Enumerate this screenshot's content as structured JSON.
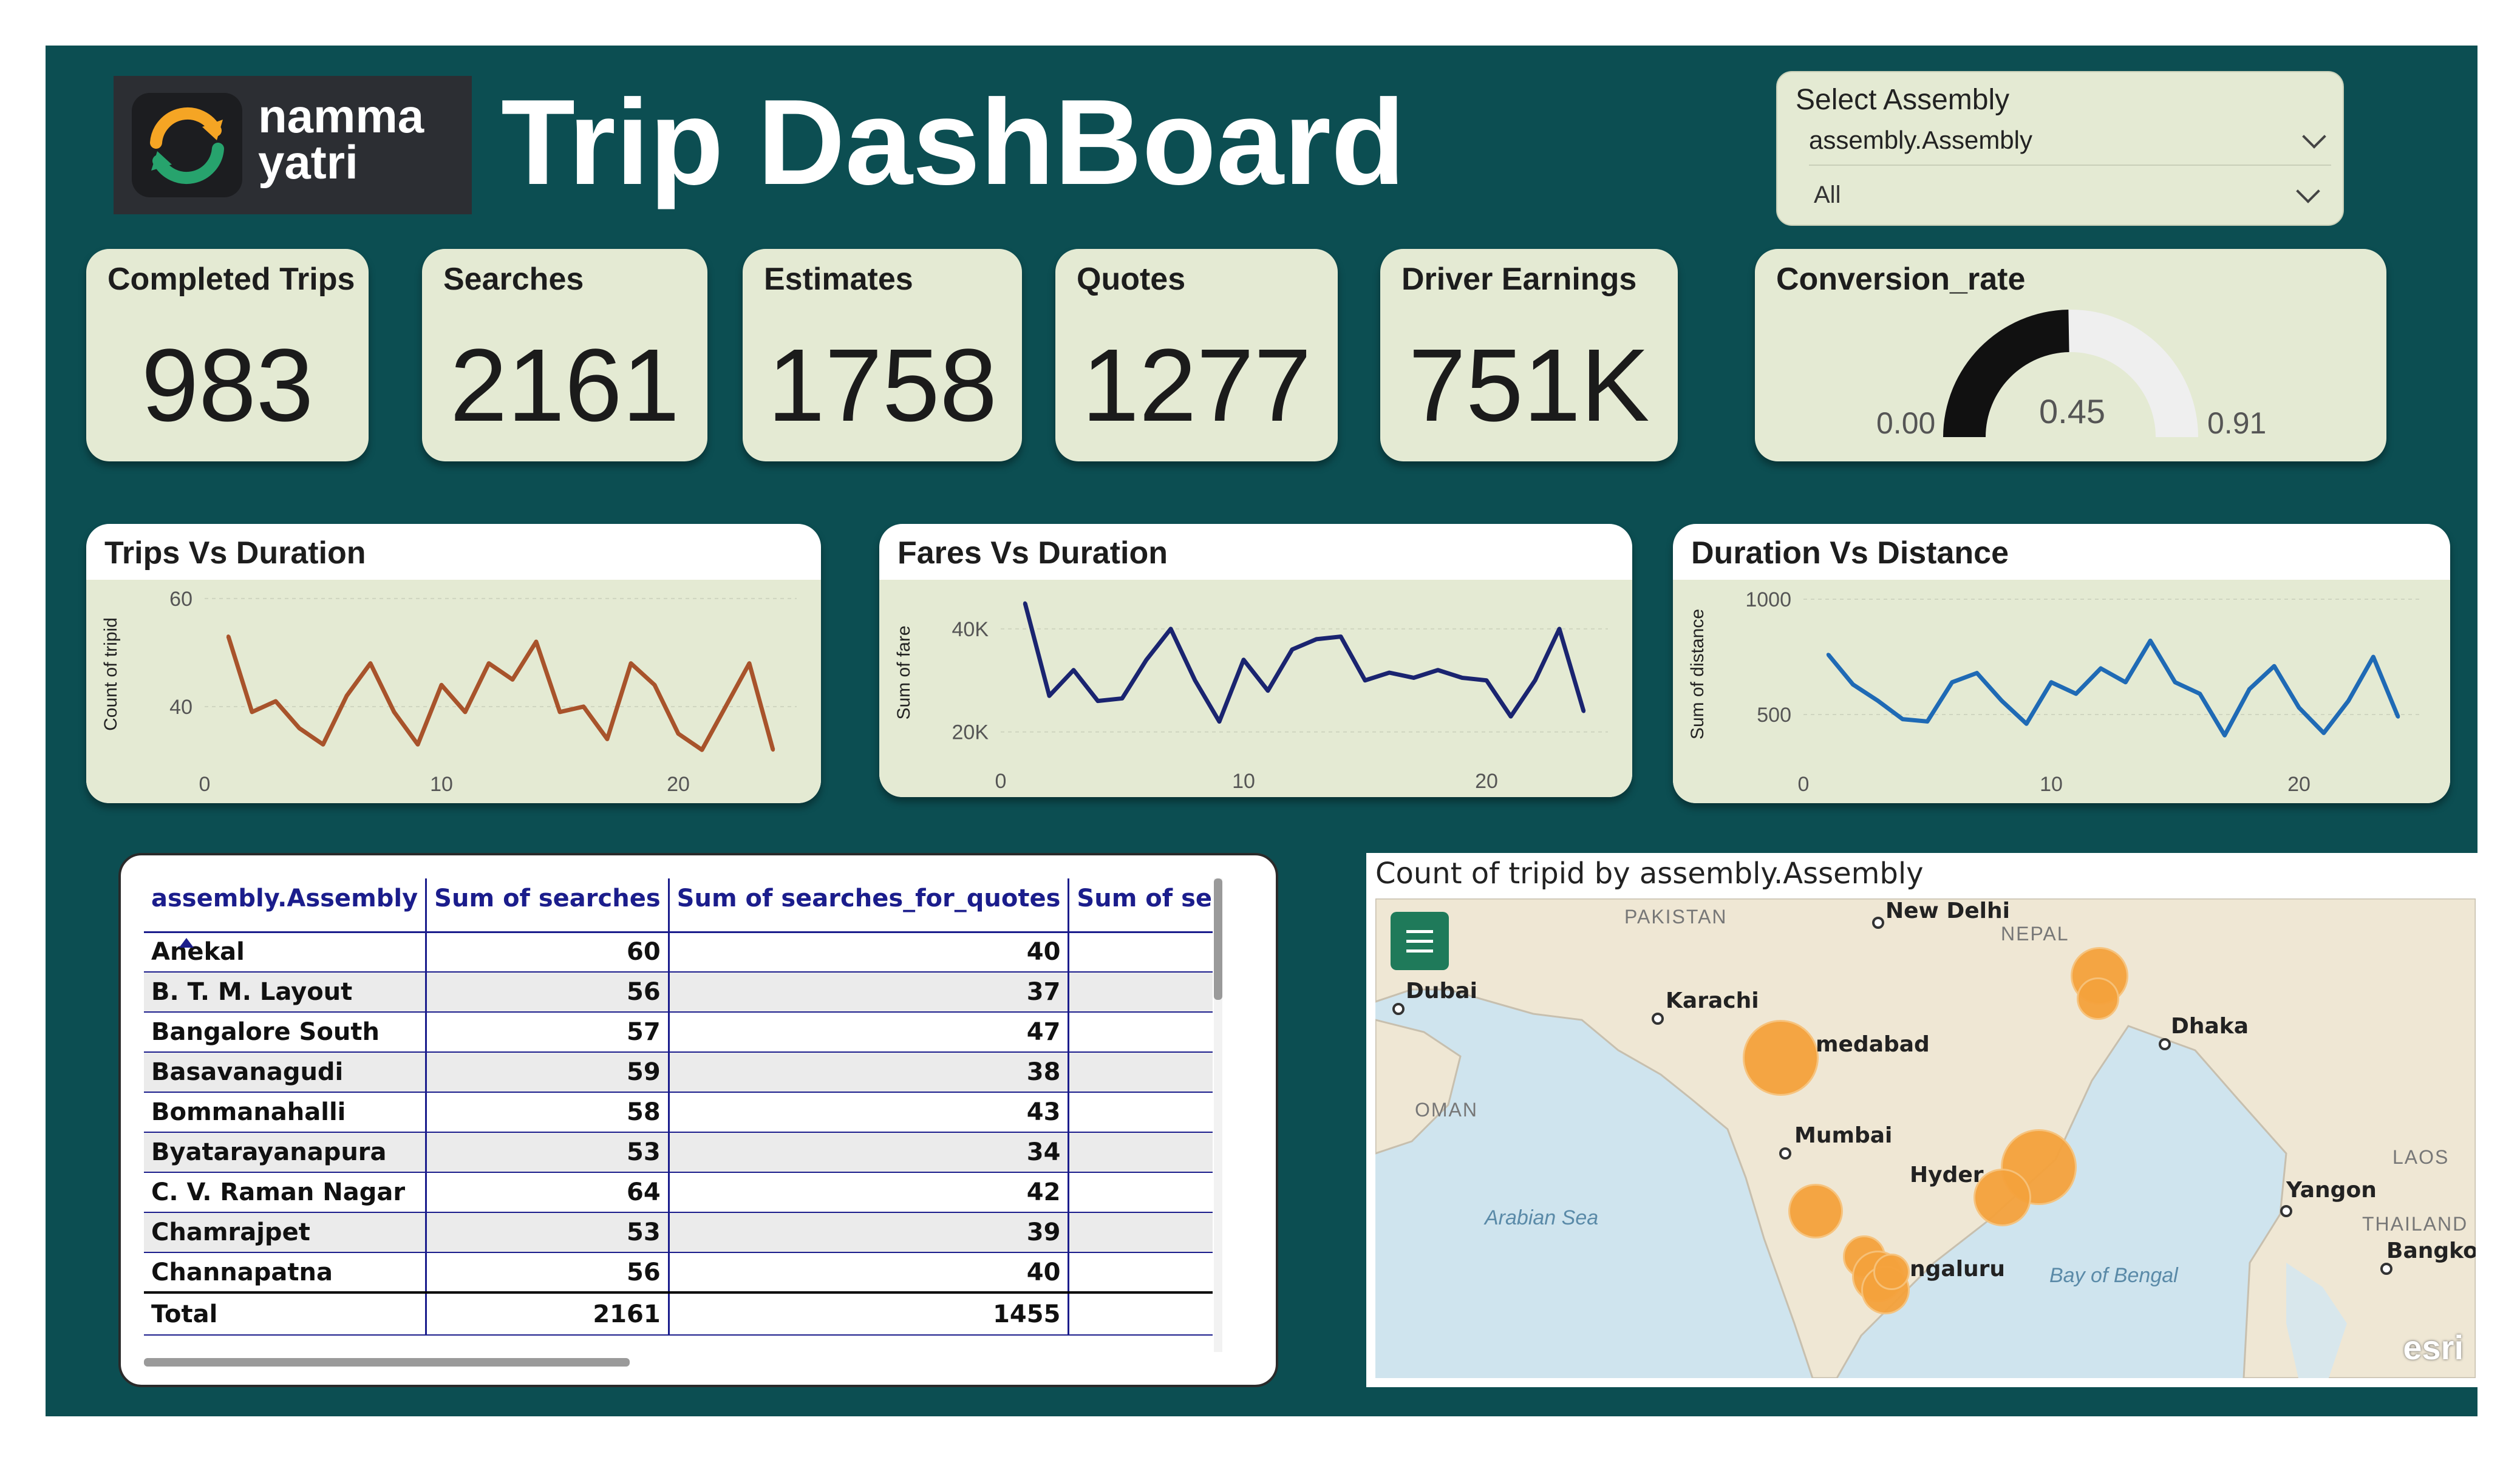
{
  "brand": {
    "line1": "namma",
    "line2": "yatri"
  },
  "header": {
    "title": "Trip DashBoard"
  },
  "slicer": {
    "label": "Select Assembly",
    "field": "assembly.Assembly",
    "value": "All"
  },
  "kpis": {
    "completed_trips": {
      "label": "Completed Trips",
      "value": "983"
    },
    "searches": {
      "label": "Searches",
      "value": "2161"
    },
    "estimates": {
      "label": "Estimates",
      "value": "1758"
    },
    "quotes": {
      "label": "Quotes",
      "value": "1277"
    },
    "driver_earnings": {
      "label": "Driver Earnings",
      "value": "751K"
    }
  },
  "gauge": {
    "label": "Conversion_rate",
    "min_label": "0.00",
    "max_label": "0.91",
    "value_label": "0.45",
    "min": 0,
    "max": 0.91,
    "value": 0.45
  },
  "charts": {
    "trips": {
      "title": "Trips Vs Duration",
      "ylabel": "Count of tripid",
      "yticks": [
        "60",
        "40"
      ],
      "xticks": [
        "0",
        "10",
        "20"
      ],
      "color": "#a8532b"
    },
    "fares": {
      "title": "Fares Vs Duration",
      "ylabel": "Sum of fare",
      "yticks": [
        "40K",
        "20K"
      ],
      "xticks": [
        "0",
        "10",
        "20"
      ],
      "color": "#1a2470"
    },
    "distance": {
      "title": "Duration Vs Distance",
      "ylabel": "Sum of distance",
      "yticks": [
        "1000",
        "500"
      ],
      "xticks": [
        "0",
        "10",
        "20"
      ],
      "color": "#1f6ab5"
    }
  },
  "chart_data": [
    {
      "type": "line",
      "title": "Trips Vs Duration",
      "xlabel": "",
      "ylabel": "Count of tripid",
      "x": [
        1,
        2,
        3,
        4,
        5,
        6,
        7,
        8,
        9,
        10,
        11,
        12,
        13,
        14,
        15,
        16,
        17,
        18,
        19,
        20,
        21,
        22,
        23,
        24
      ],
      "values": [
        53,
        39,
        41,
        36,
        33,
        42,
        48,
        39,
        33,
        44,
        39,
        48,
        45,
        52,
        39,
        40,
        34,
        48,
        44,
        35,
        32,
        40,
        48,
        32
      ],
      "xlim": [
        0,
        25
      ],
      "ylim": [
        30,
        62
      ]
    },
    {
      "type": "line",
      "title": "Fares Vs Duration",
      "xlabel": "",
      "ylabel": "Sum of fare",
      "x": [
        1,
        2,
        3,
        4,
        5,
        6,
        7,
        8,
        9,
        10,
        11,
        12,
        13,
        14,
        15,
        16,
        17,
        18,
        19,
        20,
        21,
        22,
        23,
        24
      ],
      "values": [
        45000,
        27000,
        32000,
        26000,
        26500,
        34000,
        40000,
        30000,
        22000,
        34000,
        28000,
        36000,
        38000,
        38500,
        30000,
        31500,
        30500,
        32000,
        30500,
        30000,
        23000,
        30000,
        40000,
        24000
      ],
      "xlim": [
        0,
        25
      ],
      "ylim": [
        15000,
        48000
      ]
    },
    {
      "type": "line",
      "title": "Duration Vs Distance",
      "xlabel": "",
      "ylabel": "Sum of distance",
      "x": [
        1,
        2,
        3,
        4,
        5,
        6,
        7,
        8,
        9,
        10,
        11,
        12,
        13,
        14,
        15,
        16,
        17,
        18,
        19,
        20,
        21,
        22,
        23,
        24
      ],
      "values": [
        760,
        630,
        560,
        480,
        470,
        640,
        680,
        560,
        460,
        640,
        590,
        700,
        640,
        820,
        640,
        590,
        410,
        610,
        710,
        530,
        420,
        560,
        750,
        490
      ],
      "xlim": [
        0,
        25
      ],
      "ylim": [
        300,
        1050
      ]
    }
  ],
  "table": {
    "columns": [
      "assembly.Assembly",
      "Sum of searches",
      "Sum of searches_for_quotes",
      "Sum of searches_g"
    ],
    "rows": [
      {
        "name": "Anekal",
        "searches": "60",
        "quotes": "40"
      },
      {
        "name": "B. T. M. Layout",
        "searches": "56",
        "quotes": "37"
      },
      {
        "name": "Bangalore South",
        "searches": "57",
        "quotes": "47"
      },
      {
        "name": "Basavanagudi",
        "searches": "59",
        "quotes": "38"
      },
      {
        "name": "Bommanahalli",
        "searches": "58",
        "quotes": "43"
      },
      {
        "name": "Byatarayanapura",
        "searches": "53",
        "quotes": "34"
      },
      {
        "name": "C. V. Raman Nagar",
        "searches": "64",
        "quotes": "42"
      },
      {
        "name": "Chamrajpet",
        "searches": "53",
        "quotes": "39"
      },
      {
        "name": "Channapatna",
        "searches": "56",
        "quotes": "40"
      }
    ],
    "total": {
      "label": "Total",
      "searches": "2161",
      "quotes": "1455"
    }
  },
  "map": {
    "title": "Count of tripid by assembly.Assembly",
    "cities": [
      "New Delhi",
      "Dubai",
      "Karachi",
      "Dhaka",
      "Mumbai",
      "Yangon",
      "Bangkok",
      "medabad",
      "Hyder",
      "ngaluru"
    ],
    "countries": [
      "PAKISTAN",
      "NEPAL",
      "OMAN",
      "LAOS",
      "THAILAND"
    ],
    "seas": [
      "Arabian Sea",
      "Bay of Bengal"
    ],
    "attribution": "esri",
    "bubble_color": "#f5a23c"
  }
}
